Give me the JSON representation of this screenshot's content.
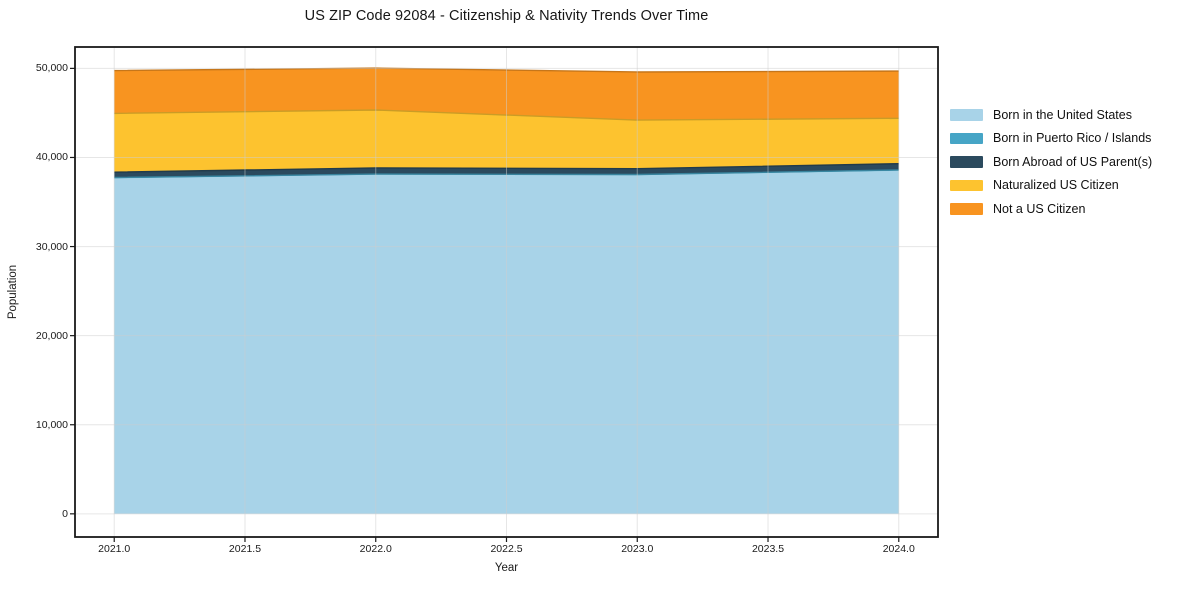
{
  "chart_data": {
    "type": "area",
    "stacked": true,
    "title": "US ZIP Code 92084 - Citizenship & Nativity Trends Over Time",
    "xlabel": "Year",
    "ylabel": "Population",
    "x": [
      2021,
      2022,
      2023,
      2024
    ],
    "series": [
      {
        "name": "Born in the United States",
        "color": "#a8d3e8",
        "values": [
          37650,
          38050,
          38000,
          38500
        ]
      },
      {
        "name": "Born in Puerto Rico / Islands",
        "color": "#46a5c6",
        "values": [
          100,
          80,
          90,
          100
        ]
      },
      {
        "name": "Born Abroad of US Parent(s)",
        "color": "#2b4a5e",
        "values": [
          600,
          700,
          650,
          700
        ]
      },
      {
        "name": "Naturalized US Citizen",
        "color": "#fdc32f",
        "values": [
          6600,
          6500,
          5450,
          5100
        ]
      },
      {
        "name": "Not a US Citizen",
        "color": "#f89420",
        "values": [
          4800,
          4700,
          5400,
          5300
        ]
      }
    ],
    "xlim": [
      2020.85,
      2024.15
    ],
    "ylim": [
      -2600,
      52400
    ],
    "xticks": {
      "values": [
        2021,
        2021.5,
        2022,
        2022.5,
        2023,
        2023.5,
        2024
      ],
      "labels": [
        "2021.0",
        "2021.5",
        "2022.0",
        "2022.5",
        "2023.0",
        "2023.5",
        "2024.0"
      ]
    },
    "yticks": {
      "values": [
        0,
        10000,
        20000,
        30000,
        40000,
        50000
      ],
      "labels": [
        "0",
        "10,000",
        "20,000",
        "30,000",
        "40,000",
        "50,000"
      ]
    },
    "grid": true,
    "legend_position": "right-outside"
  },
  "style_colors": {
    "frame": "#1a1a1a",
    "grid": "#e9e9e9",
    "tick": "#1a1a1a",
    "background": "#ffffff"
  }
}
